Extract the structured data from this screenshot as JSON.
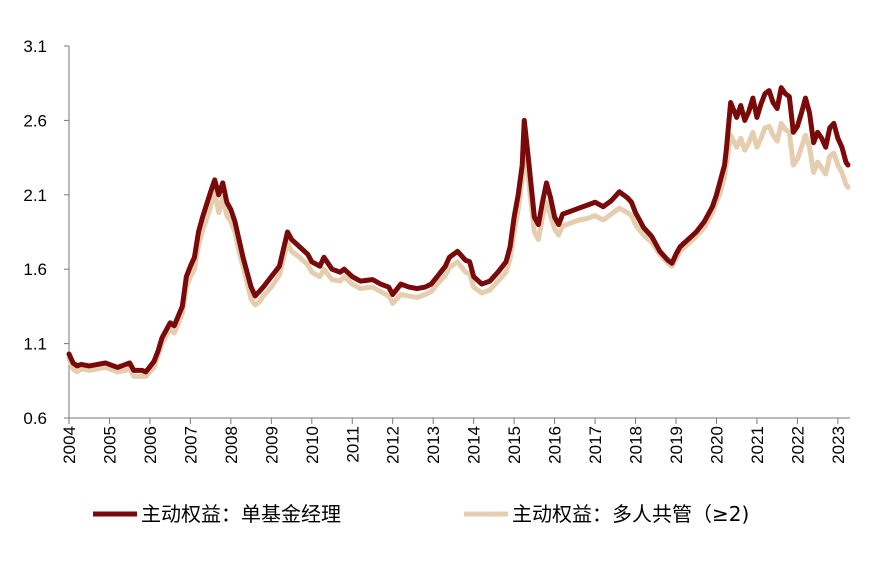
{
  "chart_data": {
    "type": "line",
    "xlim": [
      2004.0,
      2023.3
    ],
    "ylim": [
      0.6,
      3.1
    ],
    "yticks": [
      "3.1",
      "2.6",
      "2.1",
      "1.6",
      "1.1",
      "0.6"
    ],
    "xticks": [
      "2004",
      "2005",
      "2006",
      "2007",
      "2008",
      "2009",
      "2010",
      "2011",
      "2012",
      "2013",
      "2014",
      "2015",
      "2016",
      "2017",
      "2018",
      "2019",
      "2020",
      "2021",
      "2022",
      "2023"
    ],
    "grid": false,
    "legend_position": "bottom",
    "series": [
      {
        "name": "主动权益：单基金经理",
        "color": "#7a0a0a",
        "x": [
          2004.0,
          2004.1,
          2004.2,
          2004.3,
          2004.5,
          2004.7,
          2004.9,
          2005.0,
          2005.2,
          2005.4,
          2005.5,
          2005.6,
          2005.8,
          2005.9,
          2006.1,
          2006.2,
          2006.3,
          2006.5,
          2006.6,
          2006.8,
          2006.9,
          2007.0,
          2007.1,
          2007.2,
          2007.3,
          2007.5,
          2007.6,
          2007.7,
          2007.8,
          2007.9,
          2008.0,
          2008.1,
          2008.2,
          2008.3,
          2008.5,
          2008.6,
          2008.7,
          2008.8,
          2009.0,
          2009.2,
          2009.4,
          2009.5,
          2009.7,
          2009.9,
          2010.0,
          2010.2,
          2010.3,
          2010.5,
          2010.7,
          2010.8,
          2011.0,
          2011.2,
          2011.5,
          2011.7,
          2011.9,
          2012.0,
          2012.2,
          2012.4,
          2012.6,
          2012.8,
          2012.95,
          2013.1,
          2013.3,
          2013.4,
          2013.6,
          2013.8,
          2013.9,
          2014.0,
          2014.2,
          2014.4,
          2014.6,
          2014.8,
          2014.9,
          2015.0,
          2015.1,
          2015.2,
          2015.25,
          2015.35,
          2015.5,
          2015.6,
          2015.7,
          2015.8,
          2015.9,
          2016.0,
          2016.1,
          2016.2,
          2016.4,
          2016.6,
          2016.8,
          2017.0,
          2017.2,
          2017.4,
          2017.6,
          2017.8,
          2017.9,
          2018.0,
          2018.2,
          2018.4,
          2018.6,
          2018.8,
          2018.9,
          2019.0,
          2019.1,
          2019.3,
          2019.5,
          2019.7,
          2019.9,
          2020.0,
          2020.1,
          2020.2,
          2020.25,
          2020.35,
          2020.5,
          2020.6,
          2020.7,
          2020.8,
          2020.9,
          2021.0,
          2021.1,
          2021.2,
          2021.3,
          2021.4,
          2021.5,
          2021.6,
          2021.7,
          2021.8,
          2021.9,
          2022.0,
          2022.1,
          2022.2,
          2022.3,
          2022.4,
          2022.5,
          2022.6,
          2022.7,
          2022.8,
          2022.9,
          2023.0,
          2023.1,
          2023.2,
          2023.25
        ],
        "y": [
          1.03,
          0.97,
          0.95,
          0.96,
          0.95,
          0.96,
          0.97,
          0.96,
          0.94,
          0.96,
          0.97,
          0.92,
          0.92,
          0.91,
          0.98,
          1.05,
          1.14,
          1.24,
          1.22,
          1.35,
          1.55,
          1.62,
          1.68,
          1.85,
          1.95,
          2.12,
          2.2,
          2.1,
          2.18,
          2.05,
          2.0,
          1.92,
          1.8,
          1.68,
          1.48,
          1.42,
          1.45,
          1.48,
          1.55,
          1.62,
          1.85,
          1.8,
          1.75,
          1.7,
          1.65,
          1.62,
          1.68,
          1.6,
          1.58,
          1.6,
          1.55,
          1.52,
          1.53,
          1.5,
          1.48,
          1.43,
          1.5,
          1.48,
          1.47,
          1.48,
          1.5,
          1.55,
          1.62,
          1.68,
          1.72,
          1.66,
          1.65,
          1.55,
          1.5,
          1.52,
          1.58,
          1.65,
          1.75,
          1.95,
          2.1,
          2.3,
          2.6,
          2.35,
          1.95,
          1.9,
          2.05,
          2.18,
          2.08,
          1.95,
          1.9,
          1.97,
          1.99,
          2.01,
          2.03,
          2.05,
          2.02,
          2.06,
          2.12,
          2.08,
          2.05,
          1.98,
          1.88,
          1.82,
          1.72,
          1.66,
          1.64,
          1.7,
          1.75,
          1.8,
          1.85,
          1.92,
          2.02,
          2.1,
          2.2,
          2.3,
          2.42,
          2.72,
          2.62,
          2.7,
          2.6,
          2.66,
          2.75,
          2.62,
          2.71,
          2.78,
          2.8,
          2.72,
          2.68,
          2.82,
          2.78,
          2.76,
          2.52,
          2.56,
          2.65,
          2.75,
          2.65,
          2.45,
          2.52,
          2.48,
          2.42,
          2.55,
          2.58,
          2.48,
          2.42,
          2.32,
          2.3
        ]
      },
      {
        "name": "主动权益：多人共管（≥2)",
        "color": "#e5cdb0",
        "x": [
          2004.0,
          2004.1,
          2004.2,
          2004.3,
          2004.5,
          2004.7,
          2004.9,
          2005.0,
          2005.2,
          2005.4,
          2005.5,
          2005.6,
          2005.8,
          2005.9,
          2006.1,
          2006.2,
          2006.3,
          2006.5,
          2006.6,
          2006.8,
          2006.9,
          2007.0,
          2007.1,
          2007.2,
          2007.3,
          2007.5,
          2007.6,
          2007.7,
          2007.8,
          2007.9,
          2008.0,
          2008.1,
          2008.2,
          2008.3,
          2008.5,
          2008.6,
          2008.7,
          2008.8,
          2009.0,
          2009.2,
          2009.4,
          2009.5,
          2009.7,
          2009.9,
          2010.0,
          2010.2,
          2010.3,
          2010.5,
          2010.7,
          2010.8,
          2011.0,
          2011.2,
          2011.5,
          2011.7,
          2011.9,
          2012.0,
          2012.2,
          2012.4,
          2012.6,
          2012.8,
          2012.95,
          2013.1,
          2013.3,
          2013.4,
          2013.6,
          2013.8,
          2013.9,
          2014.0,
          2014.2,
          2014.4,
          2014.6,
          2014.8,
          2014.9,
          2015.0,
          2015.1,
          2015.2,
          2015.25,
          2015.35,
          2015.5,
          2015.6,
          2015.7,
          2015.8,
          2015.9,
          2016.0,
          2016.1,
          2016.2,
          2016.4,
          2016.6,
          2016.8,
          2017.0,
          2017.2,
          2017.4,
          2017.6,
          2017.8,
          2017.9,
          2018.0,
          2018.2,
          2018.4,
          2018.6,
          2018.8,
          2018.9,
          2019.0,
          2019.1,
          2019.3,
          2019.5,
          2019.7,
          2019.9,
          2020.0,
          2020.1,
          2020.2,
          2020.25,
          2020.35,
          2020.5,
          2020.6,
          2020.7,
          2020.8,
          2020.9,
          2021.0,
          2021.1,
          2021.2,
          2021.3,
          2021.4,
          2021.5,
          2021.6,
          2021.7,
          2021.8,
          2021.9,
          2022.0,
          2022.1,
          2022.2,
          2022.3,
          2022.4,
          2022.5,
          2022.6,
          2022.7,
          2022.8,
          2022.9,
          2023.0,
          2023.1,
          2023.2,
          2023.25
        ],
        "y": [
          1.0,
          0.93,
          0.91,
          0.93,
          0.92,
          0.93,
          0.94,
          0.93,
          0.91,
          0.92,
          0.93,
          0.88,
          0.88,
          0.88,
          0.94,
          1.02,
          1.1,
          1.2,
          1.17,
          1.3,
          1.48,
          1.55,
          1.6,
          1.76,
          1.86,
          2.02,
          2.12,
          1.98,
          2.08,
          1.96,
          1.92,
          1.85,
          1.72,
          1.62,
          1.4,
          1.36,
          1.38,
          1.42,
          1.48,
          1.56,
          1.78,
          1.72,
          1.68,
          1.63,
          1.58,
          1.55,
          1.6,
          1.53,
          1.52,
          1.55,
          1.5,
          1.47,
          1.48,
          1.45,
          1.42,
          1.37,
          1.43,
          1.42,
          1.41,
          1.43,
          1.45,
          1.5,
          1.56,
          1.61,
          1.65,
          1.58,
          1.57,
          1.48,
          1.44,
          1.46,
          1.52,
          1.58,
          1.67,
          1.85,
          2.0,
          2.2,
          2.45,
          2.22,
          1.85,
          1.8,
          1.95,
          2.05,
          1.96,
          1.87,
          1.83,
          1.89,
          1.91,
          1.93,
          1.94,
          1.96,
          1.93,
          1.97,
          2.01,
          1.98,
          1.96,
          1.9,
          1.83,
          1.78,
          1.7,
          1.64,
          1.62,
          1.67,
          1.72,
          1.77,
          1.82,
          1.88,
          1.98,
          2.05,
          2.12,
          2.22,
          2.32,
          2.5,
          2.42,
          2.48,
          2.4,
          2.45,
          2.52,
          2.42,
          2.48,
          2.55,
          2.56,
          2.5,
          2.46,
          2.58,
          2.54,
          2.52,
          2.3,
          2.34,
          2.42,
          2.5,
          2.42,
          2.25,
          2.32,
          2.28,
          2.24,
          2.36,
          2.38,
          2.3,
          2.25,
          2.17,
          2.15
        ]
      }
    ]
  }
}
